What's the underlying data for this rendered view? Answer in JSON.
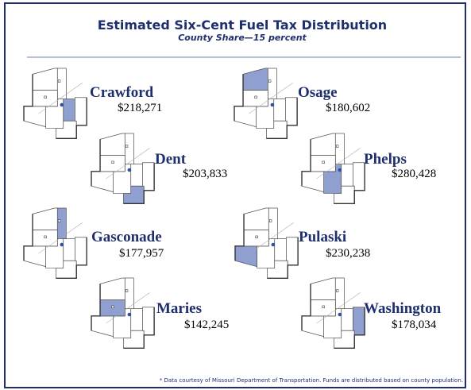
{
  "header": {
    "title": "Estimated Six-Cent Fuel Tax Distribution",
    "subtitle": "County Share—15 percent"
  },
  "counties": [
    {
      "name": "Crawford",
      "amount": "$218,271"
    },
    {
      "name": "Osage",
      "amount": "$180,602"
    },
    {
      "name": "Dent",
      "amount": "$203,833"
    },
    {
      "name": "Phelps",
      "amount": "$280,428"
    },
    {
      "name": "Gasconade",
      "amount": "$177,957"
    },
    {
      "name": "Pulaski",
      "amount": "$230,238"
    },
    {
      "name": "Maries",
      "amount": "$142,245"
    },
    {
      "name": "Washington",
      "amount": "$178,034"
    }
  ],
  "footnote": "* Data courtesy of Missouri Department of Transportation. Funds are distributed based on county population."
}
